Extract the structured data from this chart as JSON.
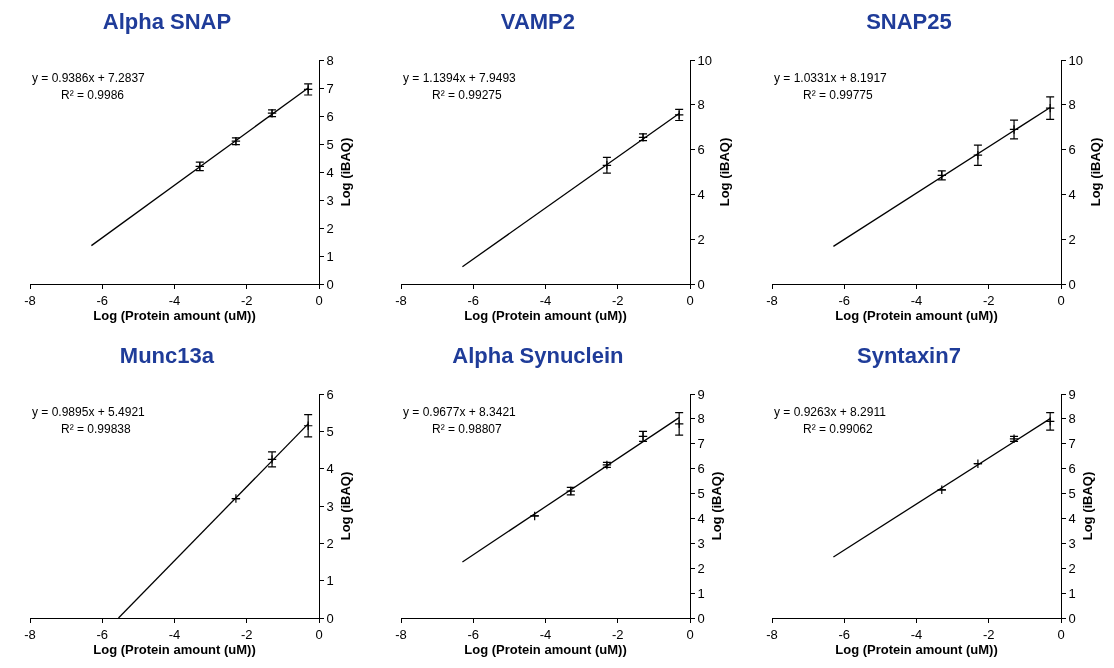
{
  "chart_data": [
    {
      "type": "scatter",
      "title": "Alpha SNAP",
      "xlabel": "Log (Protein amount (uM))",
      "ylabel": "Log (iBAQ)",
      "xlim": [
        -8,
        0
      ],
      "xticks": [
        -8,
        -6,
        -4,
        -2,
        0
      ],
      "ylim": [
        0,
        8
      ],
      "yticks": [
        0,
        1,
        2,
        3,
        4,
        5,
        6,
        7,
        8
      ],
      "grid": false,
      "annotations": [
        "y = 0.9386x + 7.2837",
        "R² = 0.9986"
      ],
      "series": [
        {
          "color": "#000000",
          "marker": "cross",
          "x": [
            -3.3,
            -2.3,
            -1.3,
            -0.3
          ],
          "values": [
            4.2,
            5.1,
            6.1,
            6.95
          ],
          "errors": [
            0.15,
            0.12,
            0.12,
            0.2
          ]
        },
        {
          "type": "line",
          "color": "#000000",
          "x": [
            -6.3,
            -0.3
          ],
          "values": [
            1.37,
            7.0
          ]
        }
      ]
    },
    {
      "type": "scatter",
      "title": "VAMP2",
      "xlabel": "Log (Protein amount (uM))",
      "ylabel": "Log (iBAQ)",
      "xlim": [
        -8,
        0
      ],
      "xticks": [
        -8,
        -6,
        -4,
        -2,
        0
      ],
      "ylim": [
        0,
        10
      ],
      "yticks": [
        0,
        2,
        4,
        6,
        8,
        10
      ],
      "grid": false,
      "annotations": [
        "y = 1.1394x + 7.9493",
        "R² = 0.99275"
      ],
      "series": [
        {
          "color": "#000000",
          "marker": "cross",
          "x": [
            -2.3,
            -1.3,
            -0.3
          ],
          "values": [
            5.3,
            6.55,
            7.55
          ],
          "errors": [
            0.35,
            0.15,
            0.25
          ]
        },
        {
          "type": "line",
          "color": "#000000",
          "x": [
            -6.3,
            -0.3
          ],
          "values": [
            0.77,
            7.61
          ]
        }
      ]
    },
    {
      "type": "scatter",
      "title": "SNAP25",
      "xlabel": "Log (Protein amount (uM))",
      "ylabel": "Log (iBAQ)",
      "xlim": [
        -8,
        0
      ],
      "xticks": [
        -8,
        -6,
        -4,
        -2,
        0
      ],
      "ylim": [
        0,
        10
      ],
      "yticks": [
        0,
        2,
        4,
        6,
        8,
        10
      ],
      "grid": false,
      "annotations": [
        "y = 1.0331x + 8.1917",
        "R² = 0.99775"
      ],
      "series": [
        {
          "color": "#000000",
          "marker": "cross",
          "x": [
            -3.3,
            -2.3,
            -1.3,
            -0.3
          ],
          "values": [
            4.85,
            5.75,
            6.9,
            7.85
          ],
          "errors": [
            0.2,
            0.45,
            0.42,
            0.5
          ]
        },
        {
          "type": "line",
          "color": "#000000",
          "x": [
            -6.3,
            -0.3
          ],
          "values": [
            1.68,
            7.88
          ]
        }
      ]
    },
    {
      "type": "scatter",
      "title": "Munc13a",
      "xlabel": "Log (Protein amount (uM))",
      "ylabel": "Log (iBAQ)",
      "xlim": [
        -8,
        0
      ],
      "xticks": [
        -8,
        -6,
        -4,
        -2,
        0
      ],
      "ylim": [
        0,
        6
      ],
      "yticks": [
        0,
        1,
        2,
        3,
        4,
        5,
        6
      ],
      "grid": false,
      "annotations": [
        "y = 0.9895x + 5.4921",
        "R² = 0.99838"
      ],
      "series": [
        {
          "color": "#000000",
          "marker": "cross",
          "x": [
            -2.3,
            -1.3,
            -0.3
          ],
          "values": [
            3.2,
            4.25,
            5.15
          ],
          "errors": [
            null,
            0.2,
            0.3
          ]
        },
        {
          "type": "line",
          "color": "#000000",
          "x": [
            -5.55,
            -0.3
          ],
          "values": [
            0,
            5.2
          ]
        }
      ]
    },
    {
      "type": "scatter",
      "title": "Alpha Synuclein",
      "xlabel": "Log (Protein amount (uM))",
      "ylabel": "Log (iBAQ)",
      "xlim": [
        -8,
        0
      ],
      "xticks": [
        -8,
        -6,
        -4,
        -2,
        0
      ],
      "ylim": [
        0,
        9
      ],
      "yticks": [
        0,
        1,
        2,
        3,
        4,
        5,
        6,
        7,
        8,
        9
      ],
      "grid": false,
      "annotations": [
        "y = 0.9677x + 8.3421",
        "R² = 0.98807"
      ],
      "series": [
        {
          "color": "#000000",
          "marker": "cross",
          "x": [
            -4.3,
            -3.3,
            -2.3,
            -1.3,
            -0.3
          ],
          "values": [
            4.1,
            5.1,
            6.15,
            7.3,
            7.8
          ],
          "errors": [
            null,
            0.15,
            0.1,
            0.2,
            0.45
          ]
        },
        {
          "type": "line",
          "color": "#000000",
          "x": [
            -6.3,
            -0.3
          ],
          "values": [
            2.25,
            8.05
          ]
        }
      ]
    },
    {
      "type": "scatter",
      "title": "Syntaxin7",
      "xlabel": "Log (Protein amount (uM))",
      "ylabel": "Log (iBAQ)",
      "xlim": [
        -8,
        0
      ],
      "xticks": [
        -8,
        -6,
        -4,
        -2,
        0
      ],
      "ylim": [
        0,
        9
      ],
      "yticks": [
        0,
        1,
        2,
        3,
        4,
        5,
        6,
        7,
        8,
        9
      ],
      "grid": false,
      "annotations": [
        "y = 0.9263x + 8.2911",
        "R² = 0.99062"
      ],
      "series": [
        {
          "color": "#000000",
          "marker": "cross",
          "x": [
            -3.3,
            -2.3,
            -1.3,
            -0.3
          ],
          "values": [
            5.15,
            6.2,
            7.2,
            7.9
          ],
          "errors": [
            null,
            null,
            0.1,
            0.35
          ]
        },
        {
          "type": "line",
          "color": "#000000",
          "x": [
            -6.3,
            -0.3
          ],
          "values": [
            2.45,
            8.01
          ]
        }
      ]
    }
  ]
}
